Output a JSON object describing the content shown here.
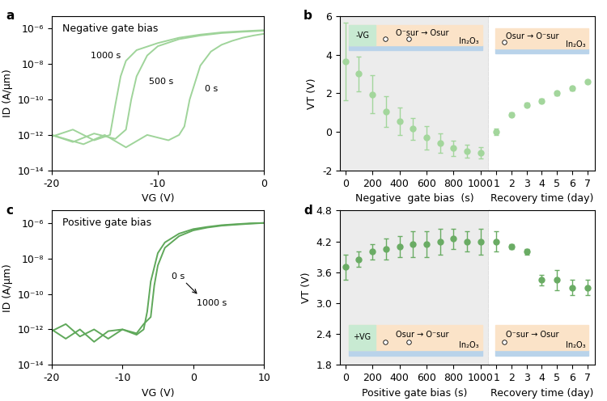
{
  "chart_data": [
    {
      "type": "line",
      "panel_label": "a",
      "text": "Negative gate bias",
      "xlabel": "VG (V)",
      "ylabel": "ID (A/μm)",
      "log": "y",
      "xlim": [
        -20,
        0
      ],
      "xticks": [
        -20,
        -10,
        0
      ],
      "ylim": [
        1e-14,
        5e-06
      ],
      "yticks": [
        {
          "value": 1e-14,
          "label": "10⁻¹⁴"
        },
        {
          "value": 1e-12,
          "label": "10⁻¹²"
        },
        {
          "value": 1e-10,
          "label": "10⁻¹⁰"
        },
        {
          "value": 1e-08,
          "label": "10⁻⁸"
        },
        {
          "value": 1e-06,
          "label": "10⁻⁶"
        }
      ],
      "series": [
        {
          "name": "0 s",
          "color": "#9fd49a",
          "x": [
            -20,
            -17,
            -15,
            -13,
            -11,
            -9,
            -8,
            -7.5,
            -7,
            -6,
            -5,
            -4,
            -3,
            -2,
            -1,
            0
          ],
          "values": [
            1e-12,
            3e-13,
            1e-12,
            2e-13,
            1e-12,
            5e-13,
            1e-12,
            3e-12,
            1e-10,
            8e-09,
            5e-08,
            1.2e-07,
            2e-07,
            3e-07,
            4e-07,
            5e-07
          ]
        },
        {
          "name": "500 s",
          "color": "#9fd49a",
          "x": [
            -20,
            -18,
            -16,
            -14,
            -13,
            -12.5,
            -12,
            -11,
            -10,
            -8,
            -6,
            -4,
            -2,
            0
          ],
          "values": [
            1e-12,
            4e-13,
            1.2e-12,
            6e-13,
            2e-12,
            1e-10,
            2e-09,
            3e-08,
            1e-07,
            2.5e-07,
            4e-07,
            5.5e-07,
            6.5e-07,
            7.5e-07
          ]
        },
        {
          "name": "1000 s",
          "color": "#9fd49a",
          "x": [
            -20,
            -18,
            -16,
            -14.5,
            -14,
            -13.5,
            -13,
            -12,
            -10,
            -8,
            -6,
            -4,
            -2,
            0
          ],
          "values": [
            8e-13,
            2e-12,
            5e-13,
            1e-12,
            5e-11,
            2e-09,
            1.5e-08,
            6e-08,
            1.5e-07,
            3e-07,
            4.5e-07,
            6e-07,
            7e-07,
            8e-07
          ]
        }
      ]
    },
    {
      "type": "scatter",
      "panel_label": "b",
      "ylabel": "VT (V)",
      "ylim": [
        -2,
        6
      ],
      "yticks": [
        -2,
        0,
        2,
        4,
        6
      ],
      "color": "#a3d69c",
      "marker": "o",
      "segments": [
        {
          "xlabel": "Negative  gate bias  (s)",
          "xlim": [
            -40,
            1060
          ],
          "xticks": [
            0,
            200,
            400,
            600,
            800,
            1000
          ],
          "x": [
            0,
            100,
            200,
            300,
            400,
            500,
            600,
            700,
            800,
            900,
            1000
          ],
          "values": [
            3.65,
            3.0,
            1.95,
            1.05,
            0.55,
            0.15,
            -0.3,
            -0.6,
            -0.85,
            -1.0,
            -1.1
          ],
          "errors": [
            2.0,
            0.9,
            1.0,
            0.8,
            0.7,
            0.55,
            0.6,
            0.5,
            0.4,
            0.35,
            0.3
          ],
          "annotations": {
            "gate": "-VG",
            "reaction": "O⁻sur → Osur",
            "material": "In₂O₃"
          }
        },
        {
          "xlabel": "Recovery time (day)",
          "xlim": [
            0.5,
            7.5
          ],
          "xticks": [
            1,
            2,
            3,
            4,
            5,
            6,
            7
          ],
          "x": [
            1,
            2,
            3,
            4,
            5,
            6,
            7
          ],
          "values": [
            0.0,
            0.9,
            1.4,
            1.6,
            2.0,
            2.25,
            2.6
          ],
          "errors": [
            0.15,
            0.1,
            0.1,
            0.1,
            0.1,
            0.1,
            0.1
          ],
          "annotations": {
            "reaction": "Osur → O⁻sur",
            "material": "In₂O₃"
          }
        }
      ]
    },
    {
      "type": "line",
      "panel_label": "c",
      "text": "Positive gate bias",
      "xlabel": "VG (V)",
      "ylabel": "ID (A/μm)",
      "log": "y",
      "xlim": [
        -20,
        10
      ],
      "xticks": [
        -20,
        -10,
        0,
        10
      ],
      "ylim": [
        1e-14,
        5e-06
      ],
      "yticks": [
        {
          "value": 1e-14,
          "label": "10⁻¹⁴"
        },
        {
          "value": 1e-12,
          "label": "10⁻¹²"
        },
        {
          "value": 1e-10,
          "label": "10⁻¹⁰"
        },
        {
          "value": 1e-08,
          "label": "10⁻⁸"
        },
        {
          "value": 1e-06,
          "label": "10⁻⁶"
        }
      ],
      "series": [
        {
          "name": "0 s",
          "color": "#5fa85a",
          "x": [
            -20,
            -18,
            -16,
            -14,
            -12,
            -10,
            -8,
            -7,
            -6.5,
            -6,
            -5,
            -4,
            -2,
            0,
            2,
            4,
            6,
            8,
            10
          ],
          "values": [
            1e-12,
            3e-13,
            1e-12,
            2e-13,
            8e-13,
            1e-12,
            5e-13,
            1e-12,
            1e-11,
            5e-10,
            2e-08,
            8e-08,
            2.5e-07,
            4.5e-07,
            6e-07,
            7.5e-07,
            8.5e-07,
            9.5e-07,
            1e-06
          ]
        },
        {
          "name": "1000 s",
          "color": "#5fa85a",
          "x": [
            -20,
            -18,
            -16,
            -14,
            -12,
            -10,
            -8,
            -7,
            -6,
            -5.5,
            -5,
            -4,
            -2,
            0,
            2,
            4,
            6,
            8,
            10
          ],
          "values": [
            8e-13,
            2e-12,
            4e-13,
            1e-12,
            3e-13,
            1e-12,
            6e-13,
            2e-12,
            5e-12,
            3e-10,
            4e-09,
            4e-08,
            1.8e-07,
            3.8e-07,
            5.5e-07,
            7e-07,
            8e-07,
            9e-07,
            1e-06
          ]
        }
      ]
    },
    {
      "type": "scatter",
      "panel_label": "d",
      "ylabel": "VT (V)",
      "ylim": [
        1.8,
        4.8
      ],
      "yticks": [
        1.8,
        2.4,
        3.0,
        3.6,
        4.2,
        4.8
      ],
      "color": "#6aac64",
      "marker": "o",
      "segments": [
        {
          "xlabel": "Positive gate bias (s)",
          "xlim": [
            -40,
            1060
          ],
          "xticks": [
            0,
            200,
            400,
            600,
            800,
            1000
          ],
          "x": [
            0,
            100,
            200,
            300,
            400,
            500,
            600,
            700,
            800,
            900,
            1000
          ],
          "values": [
            3.7,
            3.85,
            4.0,
            4.05,
            4.1,
            4.15,
            4.15,
            4.2,
            4.25,
            4.2,
            4.2
          ],
          "errors": [
            0.25,
            0.15,
            0.15,
            0.2,
            0.2,
            0.25,
            0.25,
            0.25,
            0.2,
            0.2,
            0.25
          ],
          "annotations": {
            "gate": "+VG",
            "reaction": "Osur → O⁻sur",
            "material": "In₂O₃"
          }
        },
        {
          "xlabel": "Recovery time (day)",
          "xlim": [
            0.5,
            7.5
          ],
          "xticks": [
            1,
            2,
            3,
            4,
            5,
            6,
            7
          ],
          "x": [
            1,
            2,
            3,
            4,
            5,
            6,
            7
          ],
          "values": [
            4.2,
            4.1,
            4.0,
            3.45,
            3.45,
            3.3,
            3.3
          ],
          "errors": [
            0.2,
            0.05,
            0.05,
            0.1,
            0.2,
            0.15,
            0.15
          ],
          "annotations": {
            "reaction": "O⁻sur → Osur",
            "material": "In₂O₃"
          }
        }
      ]
    }
  ]
}
